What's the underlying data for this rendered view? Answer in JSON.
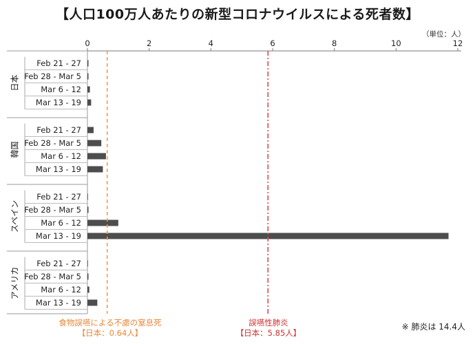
{
  "title": "【人口100万人あたりの新型コロナウイルスによる死者数】",
  "unit_label": "（単位：人）",
  "chart_data": {
    "type": "bar",
    "orientation": "horizontal",
    "xlim": [
      0,
      12
    ],
    "xticks": [
      0,
      2,
      4,
      6,
      8,
      10,
      12
    ],
    "bar_color": "#4d4d4d",
    "groups": [
      {
        "name": "日本",
        "categories": [
          "Feb 21 - 27",
          "Feb 28 - Mar 5",
          "Mar 6 - 12",
          "Mar 13 - 19"
        ],
        "values": [
          0.02,
          0.02,
          0.08,
          0.12
        ]
      },
      {
        "name": "韓国",
        "categories": [
          "Feb 21 - 27",
          "Feb 28 - Mar 5",
          "Mar 6 - 12",
          "Mar 13 - 19"
        ],
        "values": [
          0.2,
          0.45,
          0.6,
          0.5
        ]
      },
      {
        "name": "スペイン",
        "categories": [
          "Feb 21 - 27",
          "Feb 28 - Mar 5",
          "Mar 6 - 12",
          "Mar 13 - 19"
        ],
        "values": [
          0,
          0.02,
          1.0,
          11.7
        ]
      },
      {
        "name": "アメリカ",
        "categories": [
          "Feb 21 - 27",
          "Feb 28 - Mar 5",
          "Mar 6 - 12",
          "Mar 13 - 19"
        ],
        "values": [
          0,
          0.01,
          0.06,
          0.32
        ]
      }
    ],
    "reference_lines": [
      {
        "value": 0.64,
        "color": "#f39a4a",
        "label": "食物誤嚥による不慮の窒息死",
        "sublabel": "【日本：0.64人】"
      },
      {
        "value": 5.85,
        "color": "#d9484f",
        "label": "誤嚥性肺炎",
        "sublabel": "【日本：5.85人】"
      }
    ],
    "footnote": "※ 肺炎は 14.4人"
  }
}
